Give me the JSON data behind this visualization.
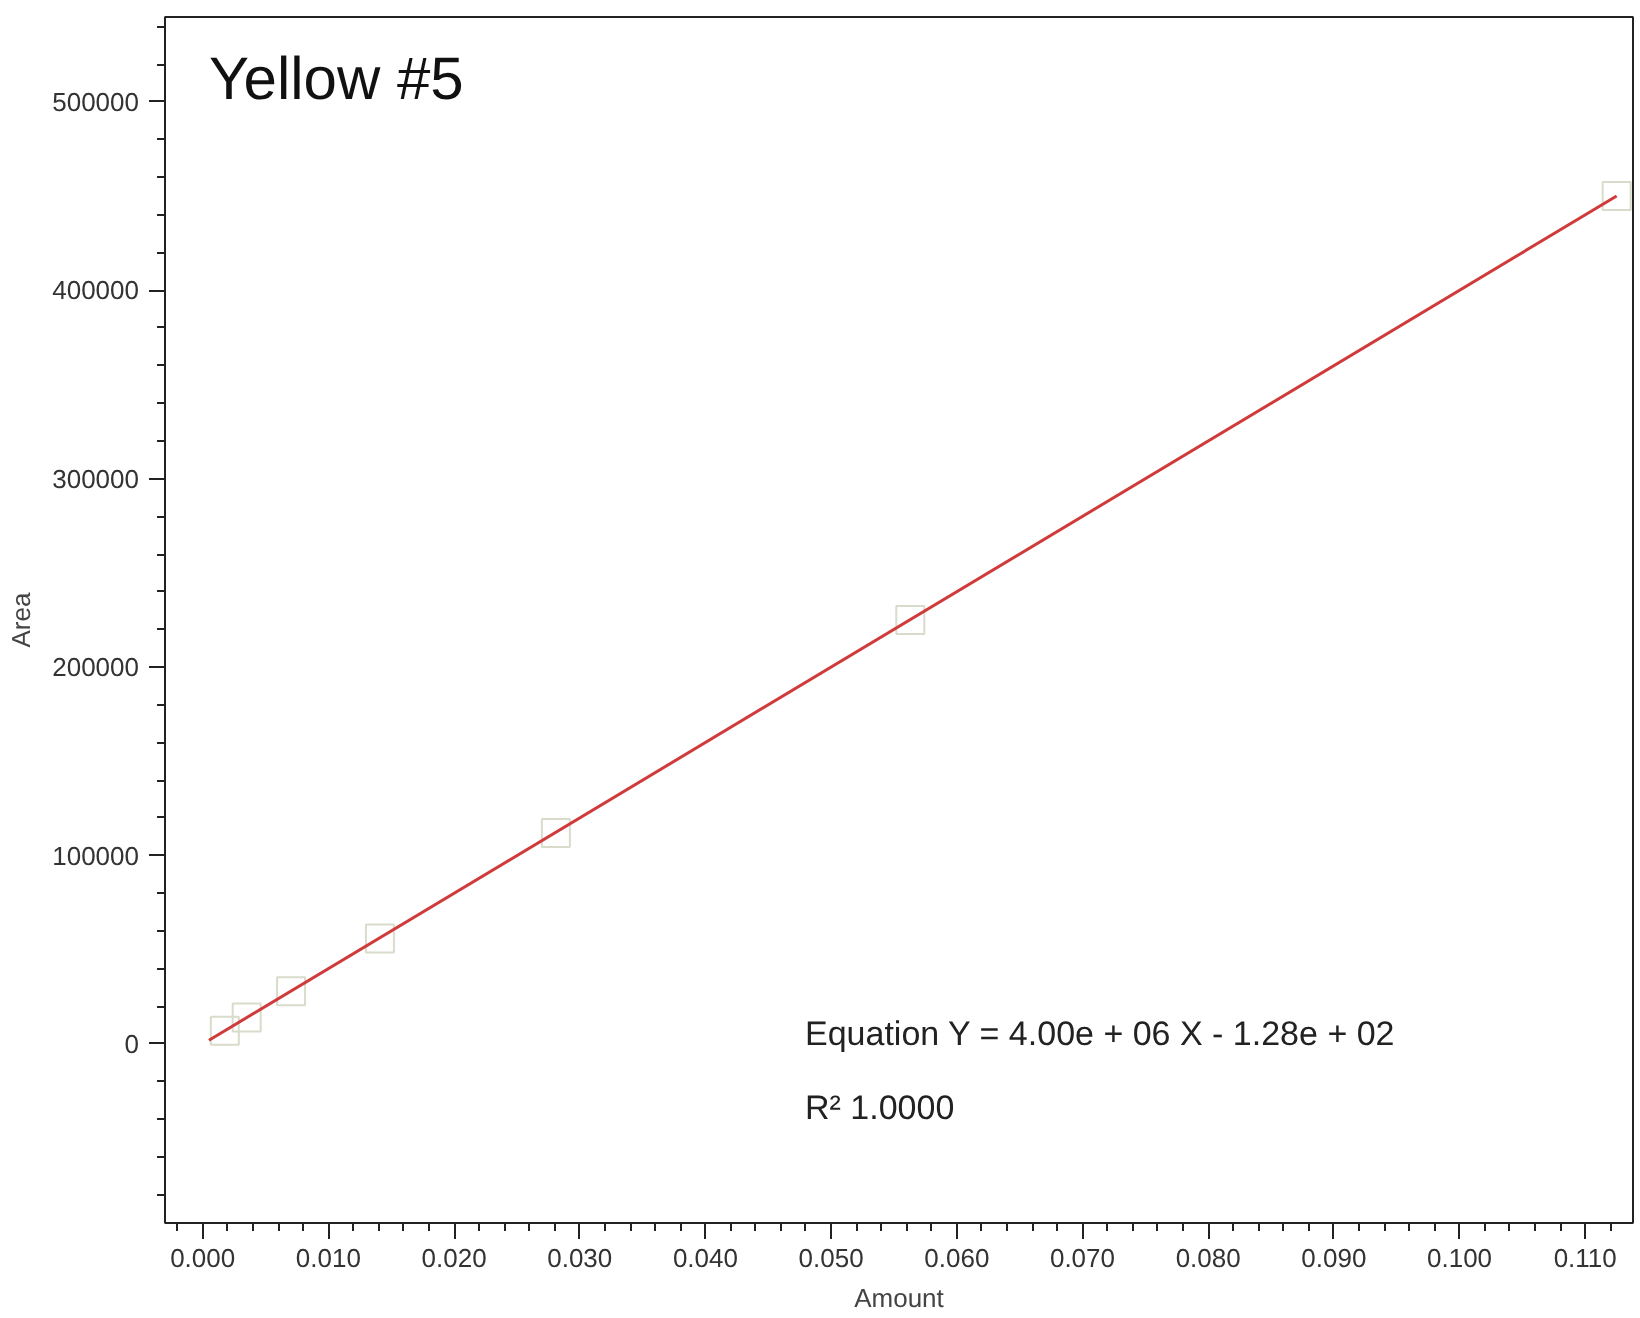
{
  "chart_data": {
    "type": "scatter",
    "title": "Yellow #5",
    "xlabel": "Amount",
    "ylabel": "Area",
    "series": [
      {
        "color": "#d9dccb",
        "marker": "square",
        "x": [
          0.00176,
          0.0035,
          0.00703,
          0.0141,
          0.0281,
          0.0563,
          0.1125
        ],
        "values": [
          7000,
          14000,
          28000,
          56000,
          112000,
          225000,
          450000
        ]
      },
      {
        "type": "line",
        "color": "#d03a3a",
        "marker": "none",
        "x": [
          0.0005,
          0.1125
        ],
        "values": [
          2000,
          450000
        ]
      }
    ],
    "xlim": [
      -0.003,
      0.1138
    ],
    "ylim": [
      -95000,
      545000
    ],
    "xticks": [
      {
        "value": 0,
        "label": "0.000"
      },
      {
        "value": 0.01,
        "label": "0.010"
      },
      {
        "value": 0.02,
        "label": "0.020"
      },
      {
        "value": 0.03,
        "label": "0.030"
      },
      {
        "value": 0.04,
        "label": "0.040"
      },
      {
        "value": 0.05,
        "label": "0.050"
      },
      {
        "value": 0.06,
        "label": "0.060"
      },
      {
        "value": 0.07,
        "label": "0.070"
      },
      {
        "value": 0.08,
        "label": "0.080"
      },
      {
        "value": 0.09,
        "label": "0.090"
      },
      {
        "value": 0.1,
        "label": "0.100"
      },
      {
        "value": 0.11,
        "label": "0.110"
      }
    ],
    "yticks": [
      0,
      100000,
      200000,
      300000,
      400000,
      500000
    ],
    "annotations": [
      "Equation Y = 4.00e + 06 X - 1.28e + 02",
      "R² 1.0000"
    ],
    "grid": false
  }
}
